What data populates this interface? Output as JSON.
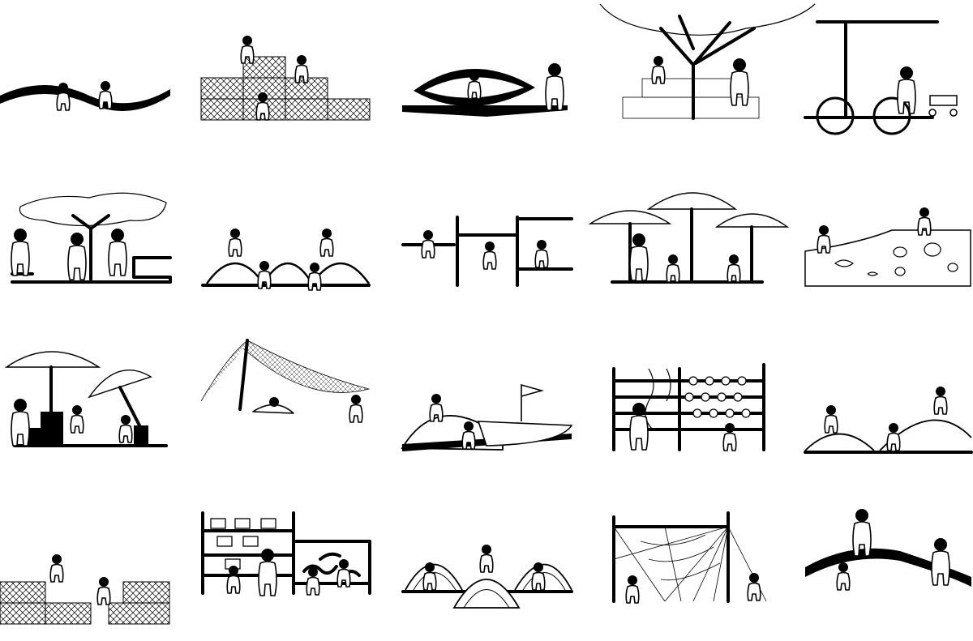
{
  "sheet": {
    "background": "#ffffff",
    "ink": "#000000"
  },
  "illustrations": [
    {
      "id": "wave-hill"
    },
    {
      "id": "net-cubes"
    },
    {
      "id": "hammock-pod"
    },
    {
      "id": "tree-benches"
    },
    {
      "id": "tire-swing"
    },
    {
      "id": "shade-cloud-seats"
    },
    {
      "id": "dome-tunnels"
    },
    {
      "id": "climbing-frames"
    },
    {
      "id": "three-umbrellas"
    },
    {
      "id": "sea-wall-mural"
    },
    {
      "id": "umbrella-stools"
    },
    {
      "id": "rope-net-shade"
    },
    {
      "id": "boat-and-mound"
    },
    {
      "id": "abacus-frame"
    },
    {
      "id": "twin-mounds"
    },
    {
      "id": "net-steps"
    },
    {
      "id": "play-board-wall"
    },
    {
      "id": "tunnel-domes"
    },
    {
      "id": "spider-web-net"
    },
    {
      "id": "sloped-ramp"
    }
  ]
}
